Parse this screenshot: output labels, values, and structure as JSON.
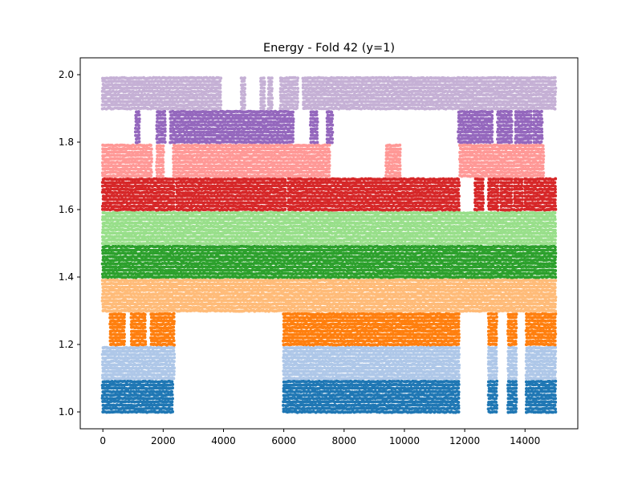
{
  "chart_data": {
    "type": "scatter",
    "title": "Energy - Fold 42 (y=1)",
    "xlabel": "",
    "ylabel": "",
    "xlim": [
      -750,
      15750
    ],
    "ylim": [
      0.95,
      2.05
    ],
    "x_ticks": [
      0,
      2000,
      4000,
      6000,
      8000,
      10000,
      12000,
      14000
    ],
    "x_tick_labels": [
      "0",
      "2000",
      "4000",
      "6000",
      "8000",
      "10000",
      "12000",
      "14000"
    ],
    "y_ticks": [
      1.0,
      1.2,
      1.4,
      1.6,
      1.8,
      2.0
    ],
    "y_tick_labels": [
      "1.0",
      "1.2",
      "1.4",
      "1.6",
      "1.8",
      "2.0"
    ],
    "grid": false,
    "legend": "none",
    "marker_size": 2,
    "series": [
      {
        "y_range": [
          1.0,
          1.09
        ],
        "color": "#1f77b4",
        "x_intervals": [
          [
            0,
            2300
          ],
          [
            6000,
            11800
          ],
          [
            12800,
            13050
          ],
          [
            13450,
            13700
          ],
          [
            14050,
            15000
          ]
        ]
      },
      {
        "y_range": [
          1.1,
          1.19
        ],
        "color": "#aec7e8",
        "x_intervals": [
          [
            0,
            2350
          ],
          [
            6000,
            11800
          ],
          [
            12800,
            13050
          ],
          [
            13450,
            13700
          ],
          [
            14050,
            15000
          ]
        ]
      },
      {
        "y_range": [
          1.2,
          1.29
        ],
        "color": "#ff7f0e",
        "x_intervals": [
          [
            250,
            700
          ],
          [
            950,
            1400
          ],
          [
            1600,
            2350
          ],
          [
            6000,
            11800
          ],
          [
            12800,
            13050
          ],
          [
            13450,
            13700
          ],
          [
            14050,
            15000
          ]
        ]
      },
      {
        "y_range": [
          1.3,
          1.39
        ],
        "color": "#ffbb78",
        "x_intervals": [
          [
            0,
            15000
          ]
        ]
      },
      {
        "y_range": [
          1.4,
          1.49
        ],
        "color": "#2ca02c",
        "x_intervals": [
          [
            0,
            15000
          ]
        ]
      },
      {
        "y_range": [
          1.5,
          1.59
        ],
        "color": "#98df8a",
        "x_intervals": [
          [
            0,
            15000
          ]
        ]
      },
      {
        "y_range": [
          1.6,
          1.69
        ],
        "color": "#d62728",
        "x_intervals": [
          [
            0,
            2350
          ],
          [
            2450,
            6050
          ],
          [
            6150,
            11800
          ],
          [
            12350,
            12600
          ],
          [
            12800,
            13100
          ],
          [
            13200,
            13550
          ],
          [
            13650,
            13900
          ],
          [
            14000,
            15000
          ]
        ]
      },
      {
        "y_range": [
          1.7,
          1.79
        ],
        "color": "#ff9896",
        "x_intervals": [
          [
            0,
            1600
          ],
          [
            1800,
            2000
          ],
          [
            2350,
            7500
          ],
          [
            9400,
            9850
          ],
          [
            11850,
            14600
          ]
        ]
      },
      {
        "y_range": [
          1.8,
          1.89
        ],
        "color": "#9467bd",
        "x_intervals": [
          [
            1100,
            1200
          ],
          [
            1800,
            2050
          ],
          [
            2250,
            6300
          ],
          [
            6900,
            7100
          ],
          [
            7450,
            7600
          ],
          [
            11800,
            12900
          ],
          [
            13100,
            13550
          ],
          [
            13700,
            14200
          ],
          [
            14300,
            14550
          ]
        ]
      },
      {
        "y_range": [
          1.9,
          1.99
        ],
        "color": "#c5b0d5",
        "x_intervals": [
          [
            0,
            3900
          ],
          [
            4600,
            4700
          ],
          [
            5250,
            5350
          ],
          [
            5500,
            5600
          ],
          [
            5900,
            6450
          ],
          [
            6650,
            15000
          ]
        ]
      }
    ]
  }
}
